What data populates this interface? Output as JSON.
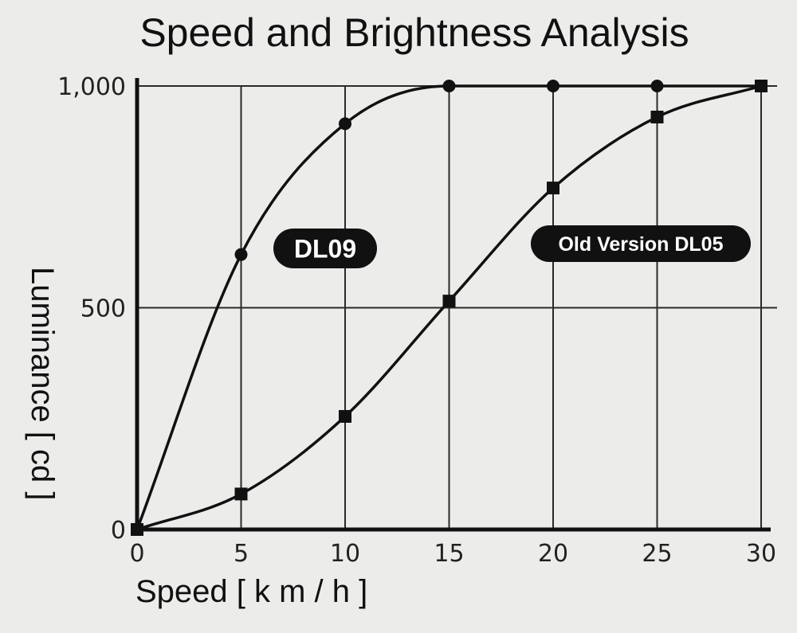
{
  "chart_data": {
    "type": "line",
    "title": "Speed and Brightness Analysis",
    "xlabel": "Speed [ k m / h ]",
    "ylabel": "Luminance [ cd ]",
    "xlim": [
      0,
      30
    ],
    "ylim": [
      0,
      1000
    ],
    "x_ticks": [
      0,
      5,
      10,
      15,
      20,
      25,
      30
    ],
    "y_ticks": [
      0,
      500,
      1000
    ],
    "y_tick_labels": [
      "0",
      "500",
      "1,000"
    ],
    "grid": true,
    "series": [
      {
        "name": "DL09",
        "marker": "circle",
        "x": [
          0,
          5,
          10,
          15,
          20,
          25,
          30
        ],
        "y": [
          0,
          620,
          915,
          1000,
          1000,
          1000,
          1000
        ]
      },
      {
        "name": "Old Version DL05",
        "marker": "square",
        "x": [
          0,
          5,
          10,
          15,
          20,
          25,
          30
        ],
        "y": [
          0,
          80,
          255,
          515,
          770,
          930,
          1000
        ]
      }
    ]
  },
  "colors": {
    "background": "#ecedeb",
    "ink": "#111111",
    "pill": "#111111",
    "pill_text": "#ffffff"
  }
}
